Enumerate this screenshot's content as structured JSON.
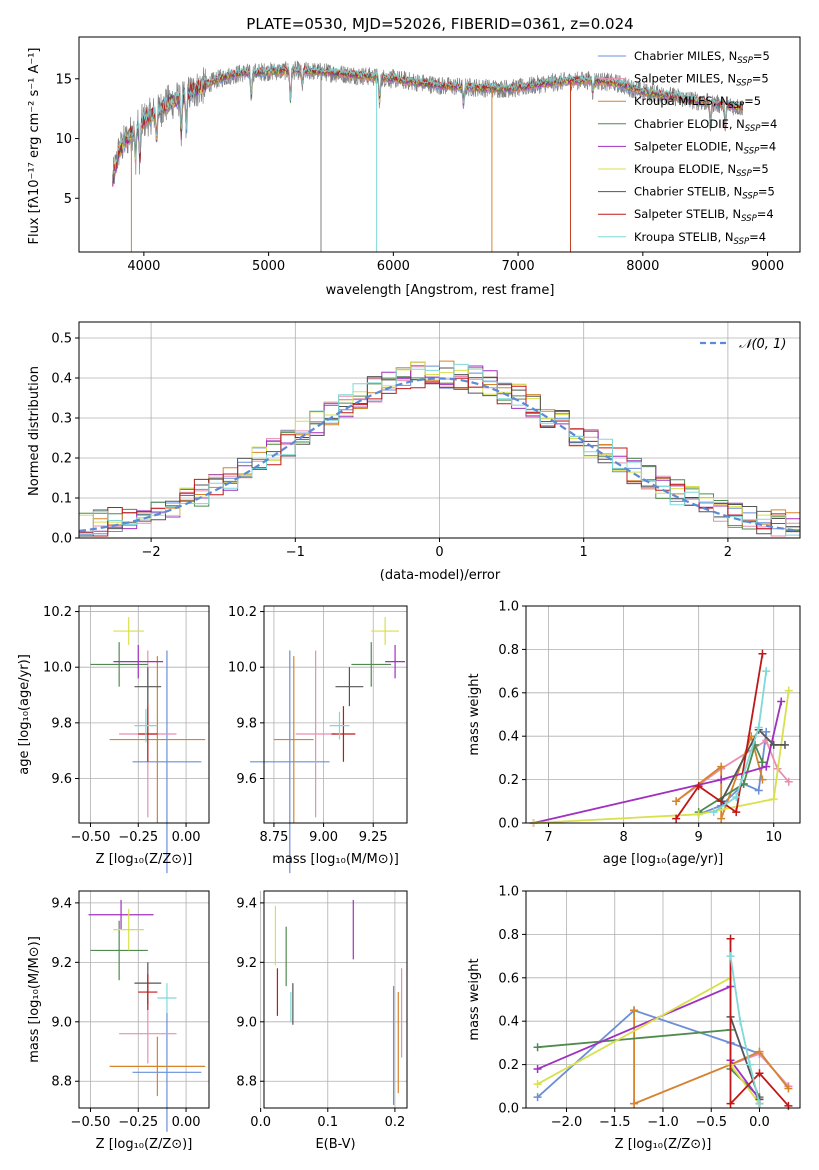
{
  "chart_data": [
    {
      "id": "spectrum",
      "type": "line",
      "title": "PLATE=0530, MJD=52026, FIBERID=0361, z=0.024",
      "xlabel": "wavelength [Angstrom, rest frame]",
      "ylabel": "Flux [f$_\\lambda$10$^{-17}$ erg cm$^{-2}$ s$^{-1}$ A$^{-1}$]",
      "ylabel_html": "Flux [fλ10⁻¹⁷ erg cm⁻² s⁻¹ A⁻¹]",
      "xlim": [
        3480,
        9260
      ],
      "ylim": [
        0.5,
        18.5
      ],
      "xticks": [
        4000,
        5000,
        6000,
        7000,
        8000,
        9000
      ],
      "yticks": [
        5,
        10,
        15
      ],
      "legend_position": "upper right",
      "legend": [
        {
          "label": "Chabrier MILES, N",
          "sub": "SSP",
          "suffix": "=5",
          "color": "#6a8fd8"
        },
        {
          "label": "Salpeter MILES, N",
          "sub": "SSP",
          "suffix": "=5",
          "color": "#e88fb0"
        },
        {
          "label": "Kroupa MILES, N",
          "sub": "SSP",
          "suffix": "=5",
          "color": "#d6842a"
        },
        {
          "label": "Chabrier ELODIE, N",
          "sub": "SSP",
          "suffix": "=4",
          "color": "#4f8a4f"
        },
        {
          "label": "Salpeter ELODIE, N",
          "sub": "SSP",
          "suffix": "=4",
          "color": "#a030c0"
        },
        {
          "label": "Kroupa ELODIE, N",
          "sub": "SSP",
          "suffix": "=5",
          "color": "#d8e04a"
        },
        {
          "label": "Chabrier STELIB, N",
          "sub": "SSP",
          "suffix": "=5",
          "color": "#555555"
        },
        {
          "label": "Salpeter STELIB, N",
          "sub": "SSP",
          "suffix": "=4",
          "color": "#c01818"
        },
        {
          "label": "Kroupa STELIB, N",
          "sub": "SSP",
          "suffix": "=4",
          "color": "#80d8d8"
        }
      ],
      "continuum_x": [
        3750,
        3800,
        3900,
        4000,
        4100,
        4200,
        4300,
        4400,
        4500,
        4600,
        4700,
        4800,
        5000,
        5200,
        5400,
        5600,
        5800,
        6000,
        6200,
        6400,
        6600,
        6800,
        7000,
        7200,
        7400,
        7600,
        7800,
        8000,
        8200,
        8400,
        8600,
        8800
      ],
      "continuum_y": [
        6.5,
        9.0,
        10.5,
        11.5,
        12.2,
        13.0,
        13.4,
        14.0,
        14.5,
        15.0,
        15.3,
        15.5,
        15.6,
        15.7,
        15.6,
        15.4,
        15.2,
        15.0,
        14.7,
        14.4,
        14.3,
        14.2,
        14.2,
        14.6,
        14.8,
        14.9,
        14.6,
        13.9,
        13.6,
        13.2,
        12.9,
        12.6
      ],
      "dips": [
        [
          3933,
          2.5
        ],
        [
          3968,
          3.0
        ],
        [
          4102,
          2.0
        ],
        [
          4300,
          3.0
        ],
        [
          4340,
          2.5
        ],
        [
          4861,
          2.0
        ],
        [
          5175,
          2.5
        ],
        [
          5270,
          1.2
        ],
        [
          5890,
          2.0
        ],
        [
          6563,
          1.5
        ],
        [
          7600,
          1.0
        ],
        [
          8542,
          2.0
        ],
        [
          8662,
          2.0
        ]
      ],
      "spikes": [
        [
          3900,
          1.0
        ],
        [
          5420,
          1.0
        ],
        [
          5866,
          1.0
        ],
        [
          6790,
          1.0
        ],
        [
          7420,
          0.5
        ]
      ]
    },
    {
      "id": "residuals",
      "type": "step",
      "xlabel": "(data-model)/error",
      "ylabel": "Normed distribution",
      "xlim": [
        -2.5,
        2.5
      ],
      "ylim": [
        0,
        0.54
      ],
      "xticks": [
        -2,
        -1,
        0,
        1,
        2
      ],
      "yticks": [
        0.0,
        0.1,
        0.2,
        0.3,
        0.4,
        0.5
      ],
      "legend_label": "𝒩(0, 1)",
      "legend_color": "#5b8ad6",
      "bins_start": -2.5,
      "bins_width": 0.1
    },
    {
      "id": "age-vs-Z",
      "type": "errorbar",
      "xlabel": "Z [log₁₀(Z/Z⊙)]",
      "ylabel": "age  [log₁₀(age/yr)]",
      "xlim": [
        -0.56,
        0.12
      ],
      "ylim": [
        9.44,
        10.22
      ],
      "xticks": [
        -0.5,
        -0.25,
        0.0
      ],
      "xtick_labels": [
        "−0.50",
        "−0.25",
        "0.00"
      ],
      "yticks": [
        9.6,
        9.8,
        10.0,
        10.2
      ],
      "points": [
        {
          "x": -0.1,
          "xerr": 0.18,
          "y": 9.66,
          "yerr": 0.4,
          "color": "#6a8fd8"
        },
        {
          "x": -0.2,
          "xerr": 0.15,
          "y": 9.76,
          "yerr": 0.3,
          "color": "#e88fb0"
        },
        {
          "x": -0.15,
          "xerr": 0.25,
          "y": 9.74,
          "yerr": 0.3,
          "color": "#d6842a"
        },
        {
          "x": -0.35,
          "xerr": 0.15,
          "y": 10.01,
          "yerr": 0.08,
          "color": "#4f8a4f"
        },
        {
          "x": -0.25,
          "xerr": 0.13,
          "y": 10.02,
          "yerr": 0.06,
          "color": "#a030c0"
        },
        {
          "x": -0.3,
          "xerr": 0.08,
          "y": 10.13,
          "yerr": 0.05,
          "color": "#d8e04a"
        },
        {
          "x": -0.2,
          "xerr": 0.07,
          "y": 9.93,
          "yerr": 0.07,
          "color": "#555555"
        },
        {
          "x": -0.2,
          "xerr": 0.05,
          "y": 9.76,
          "yerr": 0.1,
          "color": "#c01818"
        },
        {
          "x": -0.21,
          "xerr": 0.06,
          "y": 9.79,
          "yerr": 0.06,
          "color": "#80d8d8"
        }
      ]
    },
    {
      "id": "age-vs-mass",
      "type": "errorbar",
      "xlabel": "mass [log₁₀(M/M⊙)]",
      "ylabel": "",
      "xlim": [
        8.7,
        9.42
      ],
      "ylim": [
        9.44,
        10.22
      ],
      "xticks": [
        8.75,
        9.0,
        9.25
      ],
      "xtick_labels": [
        "8.75",
        "9.00",
        "9.25"
      ],
      "yticks": [
        9.6,
        9.8,
        10.0,
        10.2
      ],
      "points": [
        {
          "x": 8.83,
          "xerr": 0.2,
          "y": 9.66,
          "yerr": 0.4,
          "color": "#6a8fd8"
        },
        {
          "x": 8.96,
          "xerr": 0.1,
          "y": 9.76,
          "yerr": 0.3,
          "color": "#e88fb0"
        },
        {
          "x": 8.85,
          "xerr": 0.1,
          "y": 9.74,
          "yerr": 0.3,
          "color": "#d6842a"
        },
        {
          "x": 9.24,
          "xerr": 0.1,
          "y": 10.01,
          "yerr": 0.08,
          "color": "#4f8a4f"
        },
        {
          "x": 9.36,
          "xerr": 0.05,
          "y": 10.02,
          "yerr": 0.06,
          "color": "#a030c0"
        },
        {
          "x": 9.31,
          "xerr": 0.07,
          "y": 10.13,
          "yerr": 0.05,
          "color": "#d8e04a"
        },
        {
          "x": 9.13,
          "xerr": 0.07,
          "y": 9.93,
          "yerr": 0.07,
          "color": "#555555"
        },
        {
          "x": 9.1,
          "xerr": 0.06,
          "y": 9.76,
          "yerr": 0.1,
          "color": "#c01818"
        },
        {
          "x": 9.08,
          "xerr": 0.05,
          "y": 9.79,
          "yerr": 0.05,
          "color": "#80d8d8"
        }
      ]
    },
    {
      "id": "weight-vs-age",
      "type": "line",
      "xlabel": "age  [log₁₀(age/yr)]",
      "ylabel": "mass weight",
      "xlim": [
        6.7,
        10.35
      ],
      "ylim": [
        0,
        1.0
      ],
      "xticks": [
        7,
        8,
        9,
        10
      ],
      "yticks": [
        0.0,
        0.2,
        0.4,
        0.6,
        0.8,
        1.0
      ],
      "series": [
        {
          "color": "#6a8fd8",
          "points": [
            [
              9.0,
              0.04
            ],
            [
              9.3,
              0.08
            ],
            [
              9.6,
              0.18
            ],
            [
              9.8,
              0.15
            ],
            [
              9.9,
              0.42
            ]
          ]
        },
        {
          "color": "#e88fb0",
          "points": [
            [
              8.7,
              0.1
            ],
            [
              9.3,
              0.25
            ],
            [
              9.9,
              0.38
            ],
            [
              10.05,
              0.25
            ],
            [
              10.2,
              0.19
            ]
          ]
        },
        {
          "color": "#d6842a",
          "points": [
            [
              8.7,
              0.1
            ],
            [
              9.3,
              0.26
            ],
            [
              9.3,
              0.02
            ],
            [
              9.7,
              0.4
            ],
            [
              9.85,
              0.2
            ]
          ]
        },
        {
          "color": "#4f8a4f",
          "points": [
            [
              9.0,
              0.05
            ],
            [
              9.6,
              0.18
            ],
            [
              9.75,
              0.36
            ],
            [
              9.85,
              0.28
            ]
          ]
        },
        {
          "color": "#a030c0",
          "points": [
            [
              6.8,
              0.0
            ],
            [
              9.3,
              0.2
            ],
            [
              9.9,
              0.26
            ],
            [
              10.1,
              0.56
            ]
          ]
        },
        {
          "color": "#d8e04a",
          "points": [
            [
              6.8,
              0.0
            ],
            [
              9.0,
              0.04
            ],
            [
              10.0,
              0.11
            ],
            [
              10.2,
              0.61
            ]
          ]
        },
        {
          "color": "#555555",
          "points": [
            [
              9.3,
              0.1
            ],
            [
              9.8,
              0.43
            ],
            [
              10.0,
              0.36
            ],
            [
              10.15,
              0.36
            ]
          ]
        },
        {
          "color": "#c01818",
          "points": [
            [
              8.7,
              0.02
            ],
            [
              9.0,
              0.17
            ],
            [
              9.5,
              0.05
            ],
            [
              9.85,
              0.78
            ]
          ]
        },
        {
          "color": "#80d8d8",
          "points": [
            [
              9.2,
              0.05
            ],
            [
              9.5,
              0.12
            ],
            [
              9.8,
              0.44
            ],
            [
              9.9,
              0.7
            ]
          ]
        }
      ]
    },
    {
      "id": "mass-vs-Z",
      "type": "errorbar",
      "xlabel": "Z [log₁₀(Z/Z⊙)]",
      "ylabel": "mass [log₁₀(M/M⊙)]",
      "xlim": [
        -0.56,
        0.12
      ],
      "ylim": [
        8.71,
        9.44
      ],
      "xticks": [
        -0.5,
        -0.25,
        0.0
      ],
      "xtick_labels": [
        "−0.50",
        "−0.25",
        "0.00"
      ],
      "yticks": [
        8.8,
        9.0,
        9.2,
        9.4
      ],
      "points": [
        {
          "x": -0.1,
          "xerr": 0.18,
          "y": 8.83,
          "yerr": 0.2,
          "color": "#6a8fd8"
        },
        {
          "x": -0.2,
          "xerr": 0.15,
          "y": 8.96,
          "yerr": 0.1,
          "color": "#e88fb0"
        },
        {
          "x": -0.15,
          "xerr": 0.25,
          "y": 8.85,
          "yerr": 0.1,
          "color": "#d6842a"
        },
        {
          "x": -0.35,
          "xerr": 0.15,
          "y": 9.24,
          "yerr": 0.1,
          "color": "#4f8a4f"
        },
        {
          "x": -0.34,
          "xerr": 0.17,
          "y": 9.36,
          "yerr": 0.05,
          "color": "#a030c0"
        },
        {
          "x": -0.3,
          "xerr": 0.08,
          "y": 9.31,
          "yerr": 0.07,
          "color": "#d8e04a"
        },
        {
          "x": -0.2,
          "xerr": 0.07,
          "y": 9.13,
          "yerr": 0.07,
          "color": "#555555"
        },
        {
          "x": -0.2,
          "xerr": 0.05,
          "y": 9.1,
          "yerr": 0.06,
          "color": "#c01818"
        },
        {
          "x": -0.1,
          "xerr": 0.05,
          "y": 9.08,
          "yerr": 0.05,
          "color": "#80d8d8"
        }
      ]
    },
    {
      "id": "mass-vs-ebv",
      "type": "errorbar",
      "xlabel": "E(B-V)",
      "ylabel": "",
      "xlim": [
        0.005,
        0.218
      ],
      "ylim": [
        8.71,
        9.44
      ],
      "xticks": [
        0.0,
        0.1,
        0.2
      ],
      "xtick_labels": [
        "0.0",
        "0.1",
        "0.2"
      ],
      "yticks": [
        8.8,
        9.0,
        9.2,
        9.4
      ],
      "points": [
        {
          "x": 0.198,
          "xerr": 0,
          "y": 8.92,
          "yerr": 0.2,
          "color": "#6a8fd8"
        },
        {
          "x": 0.21,
          "xerr": 0,
          "y": 9.03,
          "yerr": 0.15,
          "color": "#e88fb0"
        },
        {
          "x": 0.205,
          "xerr": 0,
          "y": 8.93,
          "yerr": 0.17,
          "color": "#d6842a"
        },
        {
          "x": 0.038,
          "xerr": 0,
          "y": 9.22,
          "yerr": 0.1,
          "color": "#4f8a4f"
        },
        {
          "x": 0.138,
          "xerr": 0,
          "y": 9.31,
          "yerr": 0.1,
          "color": "#a030c0"
        },
        {
          "x": 0.022,
          "xerr": 0,
          "y": 9.29,
          "yerr": 0.1,
          "color": "#d8e04a"
        },
        {
          "x": 0.048,
          "xerr": 0,
          "y": 9.06,
          "yerr": 0.07,
          "color": "#555555"
        },
        {
          "x": 0.025,
          "xerr": 0,
          "y": 9.1,
          "yerr": 0.08,
          "color": "#c01818"
        },
        {
          "x": 0.045,
          "xerr": 0,
          "y": 9.05,
          "yerr": 0.05,
          "color": "#80d8d8"
        }
      ]
    },
    {
      "id": "weight-vs-Z",
      "type": "line",
      "xlabel": "Z [log₁₀(Z/Z⊙)]",
      "ylabel": "mass weight",
      "xlim": [
        -2.42,
        0.42
      ],
      "ylim": [
        0,
        1.0
      ],
      "xticks": [
        -2.0,
        -1.5,
        -1.0,
        -0.5,
        0.0
      ],
      "xtick_labels": [
        "−2.0",
        "−1.5",
        "−1.0",
        "−0.5",
        "0.0"
      ],
      "yticks": [
        0.0,
        0.2,
        0.4,
        0.6,
        0.8,
        1.0
      ],
      "series": [
        {
          "color": "#6a8fd8",
          "points": [
            [
              -2.3,
              0.05
            ],
            [
              -1.3,
              0.45
            ],
            [
              -0.3,
              0.3
            ],
            [
              0.0,
              0.25
            ],
            [
              0.3,
              0.1
            ]
          ]
        },
        {
          "color": "#e88fb0",
          "points": [
            [
              -1.3,
              0.02
            ],
            [
              -0.3,
              0.2
            ],
            [
              0.0,
              0.25
            ],
            [
              0.3,
              0.1
            ]
          ]
        },
        {
          "color": "#d6842a",
          "points": [
            [
              -1.3,
              0.45
            ],
            [
              -1.3,
              0.02
            ],
            [
              -0.3,
              0.2
            ],
            [
              0.0,
              0.26
            ],
            [
              0.3,
              0.09
            ]
          ]
        },
        {
          "color": "#4f8a4f",
          "points": [
            [
              -2.3,
              0.28
            ],
            [
              -0.3,
              0.36
            ],
            [
              -0.3,
              0.18
            ],
            [
              0.0,
              0.05
            ]
          ]
        },
        {
          "color": "#a030c0",
          "points": [
            [
              -2.3,
              0.18
            ],
            [
              -0.3,
              0.56
            ],
            [
              -0.3,
              0.22
            ],
            [
              0.0,
              0.04
            ]
          ]
        },
        {
          "color": "#d8e04a",
          "points": [
            [
              -2.3,
              0.11
            ],
            [
              -0.3,
              0.6
            ],
            [
              -0.3,
              0.2
            ],
            [
              0.0,
              0.02
            ]
          ]
        },
        {
          "color": "#555555",
          "points": [
            [
              -0.3,
              0.42
            ],
            [
              0.0,
              0.04
            ],
            [
              0.0,
              0.02
            ]
          ]
        },
        {
          "color": "#c01818",
          "points": [
            [
              -0.3,
              0.78
            ],
            [
              -0.3,
              0.02
            ],
            [
              0.0,
              0.16
            ],
            [
              0.3,
              0.01
            ]
          ]
        },
        {
          "color": "#80d8d8",
          "points": [
            [
              -0.3,
              0.7
            ],
            [
              -0.2,
              0.4
            ],
            [
              -0.1,
              0.2
            ],
            [
              0.0,
              0.02
            ]
          ]
        }
      ]
    }
  ]
}
